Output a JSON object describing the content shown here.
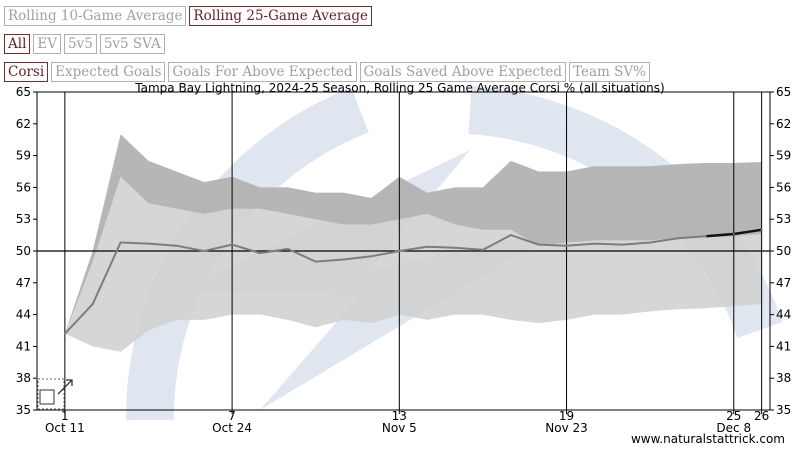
{
  "controls": {
    "average_tabs": [
      {
        "label": "Rolling 10-Game Average",
        "active": false
      },
      {
        "label": "Rolling 25-Game Average",
        "active": true
      }
    ],
    "situations": [
      {
        "label": "All",
        "active": true
      },
      {
        "label": "EV",
        "active": false
      },
      {
        "label": "5v5",
        "active": false
      },
      {
        "label": "5v5 SVA",
        "active": false
      }
    ],
    "metrics": [
      {
        "label": "Corsi",
        "active": true
      },
      {
        "label": "Expected Goals",
        "active": false
      },
      {
        "label": "Goals For Above Expected",
        "active": false
      },
      {
        "label": "Goals Saved Above Expected",
        "active": false
      },
      {
        "label": "Team SV%",
        "active": false
      }
    ]
  },
  "chart_data": {
    "type": "line",
    "title": "Tampa Bay Lightning, 2024-25 Season, Rolling 25 Game Average Corsi % (all situations)",
    "ylim": [
      35,
      65
    ],
    "yticks": [
      35,
      38,
      41,
      44,
      47,
      50,
      53,
      56,
      59,
      62,
      65
    ],
    "xlim": [
      0,
      26.3
    ],
    "game_ticks": [
      1,
      7,
      13,
      19,
      25,
      26
    ],
    "date_labels": [
      {
        "game": 1,
        "label": "Oct 11"
      },
      {
        "game": 7,
        "label": "Oct 24"
      },
      {
        "game": 13,
        "label": "Nov 5"
      },
      {
        "game": 19,
        "label": "Nov 23"
      },
      {
        "game": 25,
        "label": "Dec 8"
      }
    ],
    "reference_line": 50,
    "series": [
      {
        "x": [
          1,
          2,
          3,
          4,
          5,
          6,
          7,
          8,
          9,
          10,
          11,
          12,
          13,
          14,
          15,
          16,
          17,
          18,
          19,
          20,
          21,
          22,
          23,
          24,
          25,
          26
        ],
        "values": [
          42.2,
          45.0,
          50.8,
          50.7,
          50.5,
          50.0,
          50.6,
          49.8,
          50.2,
          49.0,
          49.2,
          49.5,
          50.0,
          50.4,
          50.3,
          50.1,
          51.5,
          50.6,
          50.5,
          50.7,
          50.6,
          50.8,
          51.2,
          51.4,
          51.6,
          52.0
        ],
        "band_low": [
          42.2,
          41.0,
          40.5,
          42.5,
          43.5,
          43.5,
          44.0,
          44.0,
          43.5,
          42.8,
          43.5,
          43.2,
          44.0,
          43.5,
          44.0,
          44.0,
          43.5,
          43.2,
          43.5,
          44.0,
          44.0,
          44.3,
          44.5,
          44.6,
          44.8,
          45.0
        ],
        "band_high": [
          42.2,
          50.0,
          61.0,
          58.5,
          57.5,
          56.5,
          57.0,
          56.0,
          56.0,
          55.5,
          55.5,
          55.0,
          57.0,
          55.5,
          56.0,
          56.0,
          58.5,
          57.5,
          57.5,
          58.0,
          58.0,
          58.0,
          58.2,
          58.3,
          58.3,
          58.4
        ],
        "team_band_high": [
          42.2,
          49.0,
          57.0,
          54.5,
          54.0,
          53.5,
          54.0,
          54.0,
          53.5,
          53.0,
          52.5,
          52.5,
          53.0,
          53.5,
          52.5,
          52.0,
          52.0,
          50.5,
          50.8,
          51.0,
          51.0,
          51.0,
          51.2,
          51.3,
          51.4,
          51.6
        ]
      }
    ]
  },
  "watermark": "www.naturalstattrick.com",
  "colors": {
    "band": "#cfcfcf",
    "team_band": "#aeaeae",
    "line": "#7d7d7d",
    "line_recent": "#111111",
    "logo": "#dde4ef",
    "active_border": "#7a2c2c"
  }
}
